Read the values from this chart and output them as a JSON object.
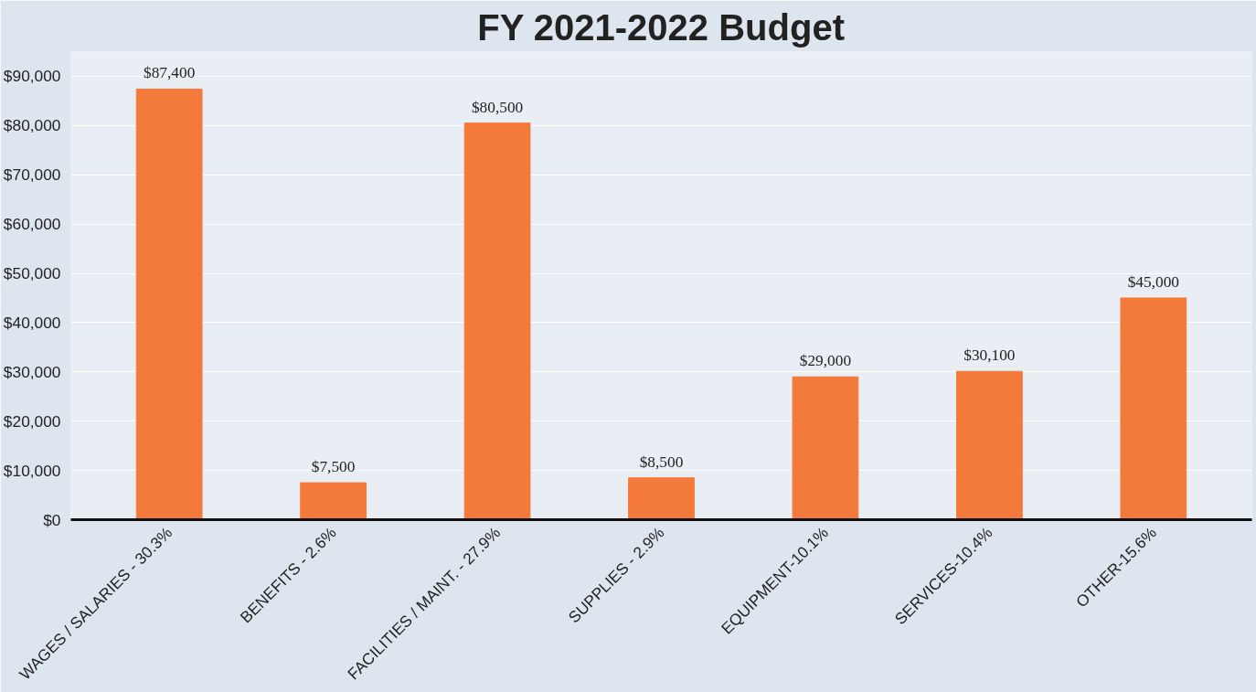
{
  "chart_data": {
    "type": "bar",
    "title": "FY 2021-2022 Budget",
    "categories": [
      "WAGES / SALARIES - 30.3%",
      "BENEFITS - 2.6%",
      "FACILITIES / MAINT. - 27.9%",
      "SUPPLIES - 2.9%",
      "EQUIPMENT-10.1%",
      "SERVICES-10.4%",
      "OTHER-15.6%"
    ],
    "values": [
      87400,
      7500,
      80500,
      8500,
      29000,
      30100,
      45000
    ],
    "value_labels": [
      "$87,400",
      "$7,500",
      "$80,500",
      "$8,500",
      "$29,000",
      "$30,100",
      "$45,000"
    ],
    "color": "#f47a3c",
    "ylim": [
      0,
      95000
    ],
    "yticks": [
      {
        "value": 0,
        "label": "$0"
      },
      {
        "value": 10000,
        "label": "$10,000"
      },
      {
        "value": 20000,
        "label": "$20,000"
      },
      {
        "value": 30000,
        "label": "$30,000"
      },
      {
        "value": 40000,
        "label": "$40,000"
      },
      {
        "value": 50000,
        "label": "$50,000"
      },
      {
        "value": 60000,
        "label": "$60,000"
      },
      {
        "value": 70000,
        "label": "$70,000"
      },
      {
        "value": 80000,
        "label": "$80,000"
      },
      {
        "value": 90000,
        "label": "$90,000"
      }
    ],
    "grid": "y"
  }
}
